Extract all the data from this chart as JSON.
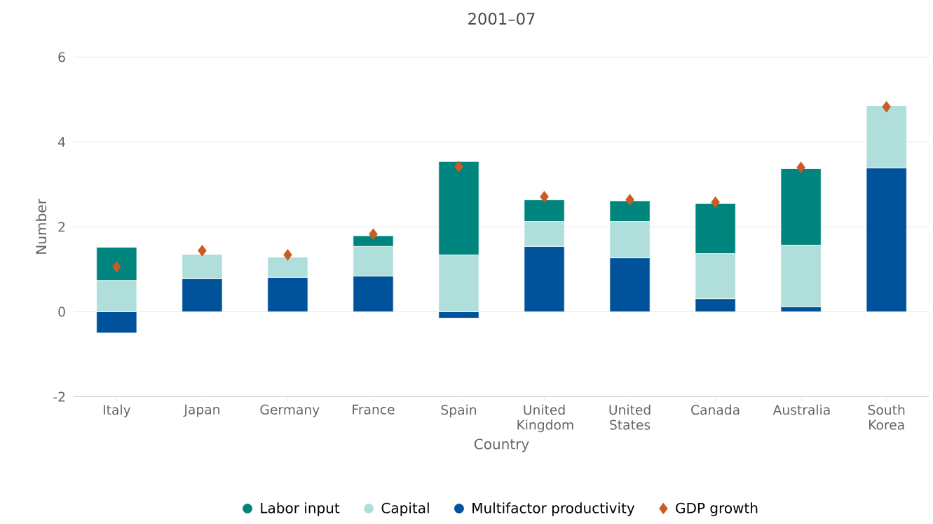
{
  "chart_data": {
    "type": "bar",
    "title": "2001–07",
    "xlabel": "Country",
    "ylabel": "Number",
    "categories": [
      "Italy",
      "Japan",
      "Germany",
      "France",
      "Spain",
      "United Kingdom",
      "United States",
      "Canada",
      "Australia",
      "South Korea"
    ],
    "stacked": true,
    "series": [
      {
        "name": "Multifactor productivity",
        "color": "#00529b",
        "values": [
          -0.5,
          0.78,
          0.81,
          0.84,
          -0.15,
          1.54,
          1.27,
          0.31,
          0.12,
          3.39
        ]
      },
      {
        "name": "Capital",
        "color": "#b0dfdb",
        "values": [
          0.74,
          0.58,
          0.48,
          0.7,
          1.34,
          0.59,
          0.86,
          1.06,
          1.45,
          1.47
        ]
      },
      {
        "name": "Labor input",
        "color": "#00857e",
        "values": [
          0.78,
          0,
          0,
          0.25,
          2.2,
          0.51,
          0.48,
          1.18,
          1.8,
          0
        ]
      },
      {
        "name": "GDP growth",
        "type": "scatter",
        "marker": "diamond",
        "color": "#cc5a22",
        "values": [
          1.06,
          1.44,
          1.34,
          1.83,
          3.42,
          2.71,
          2.64,
          2.58,
          3.4,
          4.83
        ]
      }
    ],
    "ylim": [
      -2,
      6
    ],
    "yticks": [
      -2,
      0,
      2,
      4,
      6
    ],
    "grid": "y",
    "legend": "bottom"
  }
}
